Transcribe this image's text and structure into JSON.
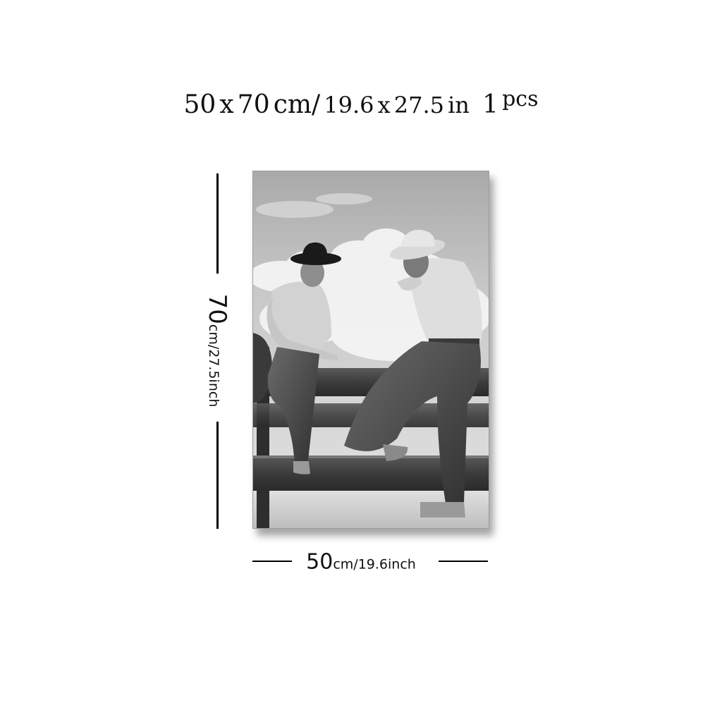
{
  "header": {
    "size_w": "50",
    "x1": "x",
    "size_h": "70",
    "unit_cm": "cm/",
    "inch_w": "19.6",
    "x2": "x",
    "inch_h": "27.5",
    "unit_in": "in",
    "qty_num": "1",
    "qty_unit": "pcs"
  },
  "dimensions": {
    "height_num": "70",
    "height_unit": "cm/27.5inch",
    "width_num": "50",
    "width_unit": "cm/19.6inch"
  },
  "artwork": {
    "description_icon": "canvas-print-image",
    "palette": [
      "#ffffff",
      "#1a1a1a",
      "#8a8a8a",
      "#cfcfcf"
    ]
  }
}
